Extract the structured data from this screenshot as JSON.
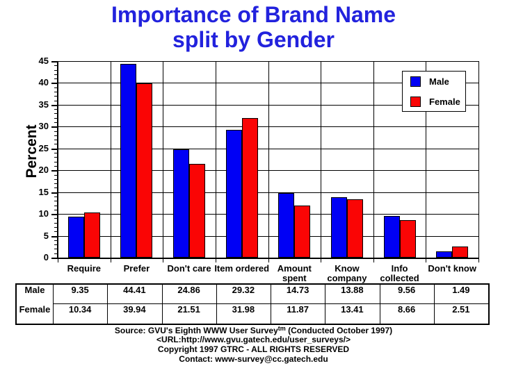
{
  "title": {
    "line1": "Importance of Brand Name",
    "line2": "split by Gender"
  },
  "colors": {
    "title_blue": "#2222dd",
    "male_blue": "#0000f5",
    "female_red": "#fa0505",
    "axis_black": "#000000",
    "background": "#ffffff"
  },
  "chart_data": {
    "type": "bar",
    "title": "Importance of Brand Name split by Gender",
    "xlabel": "",
    "ylabel": "Percent",
    "categories": [
      "Require",
      "Prefer",
      "Don't care",
      "Item ordered",
      "Amount spent",
      "Know company",
      "Info collected",
      "Don't know"
    ],
    "series": [
      {
        "name": "Male",
        "color": "#0000f5",
        "values": [
          9.35,
          44.41,
          24.86,
          29.32,
          14.73,
          13.88,
          9.56,
          1.49
        ]
      },
      {
        "name": "Female",
        "color": "#fa0505",
        "values": [
          10.34,
          39.94,
          21.51,
          31.98,
          11.87,
          13.41,
          8.66,
          2.51
        ]
      }
    ],
    "ylim": [
      0,
      45
    ],
    "y_tick_step": 5,
    "y_ticks": [
      0,
      5,
      10,
      15,
      20,
      25,
      30,
      35,
      40,
      45
    ],
    "grid": true,
    "legend_position": "upper-right",
    "two_line_categories": [
      4,
      5,
      6
    ]
  },
  "table": {
    "rows": [
      {
        "label": "Male",
        "cells": [
          "9.35",
          "44.41",
          "24.86",
          "29.32",
          "14.73",
          "13.88",
          "9.56",
          "1.49"
        ]
      },
      {
        "label": "Female",
        "cells": [
          "10.34",
          "39.94",
          "21.51",
          "31.98",
          "11.87",
          "13.41",
          "8.66",
          "2.51"
        ]
      }
    ]
  },
  "footer": {
    "line1_prefix": "Source: GVU's Eighth WWW User Survey",
    "line1_sup": "tm",
    "line1_suffix": " (Conducted October 1997)",
    "line2": "<URL:http://www.gvu.gatech.edu/user_surveys/>",
    "line3": "Copyright 1997 GTRC - ALL RIGHTS RESERVED",
    "line4": "Contact: www-survey@cc.gatech.edu"
  }
}
